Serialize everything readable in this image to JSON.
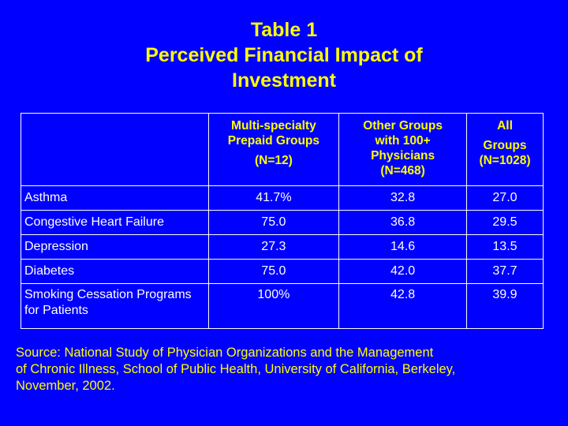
{
  "title": {
    "line1": "Table 1",
    "line2": "Perceived Financial Impact of",
    "line3": "Investment"
  },
  "table": {
    "headers": [
      {
        "lines": [
          ""
        ],
        "sub": ""
      },
      {
        "lines": [
          "Multi-specialty",
          "Prepaid Groups"
        ],
        "sub": "(N=12)"
      },
      {
        "lines": [
          "Other Groups",
          "with 100+",
          "Physicians",
          "(N=468)"
        ],
        "sub": ""
      },
      {
        "lines": [
          "All"
        ],
        "sub": "Groups (N=1028)"
      }
    ],
    "rows": [
      {
        "label": "Asthma",
        "values": [
          "41.7%",
          "32.8",
          "27.0"
        ]
      },
      {
        "label": "Congestive Heart Failure",
        "values": [
          "75.0",
          "36.8",
          "29.5"
        ]
      },
      {
        "label": "Depression",
        "values": [
          "27.3",
          "14.6",
          "13.5"
        ]
      },
      {
        "label": "Diabetes",
        "values": [
          "75.0",
          "42.0",
          "37.7"
        ]
      },
      {
        "label": "Smoking Cessation Programs for Patients",
        "values": [
          "100%",
          "42.8",
          "39.9"
        ]
      }
    ]
  },
  "source": {
    "line1": "Source:  National Study of Physician Organizations and the Management",
    "line2": "of Chronic Illness, School of Public Health, University of California, Berkeley,",
    "line3": "November, 2002."
  },
  "colors": {
    "background": "#0000ff",
    "title": "#ffff00",
    "header_text": "#ffff00",
    "cell_text": "#ffffff",
    "border": "#ffffff"
  }
}
